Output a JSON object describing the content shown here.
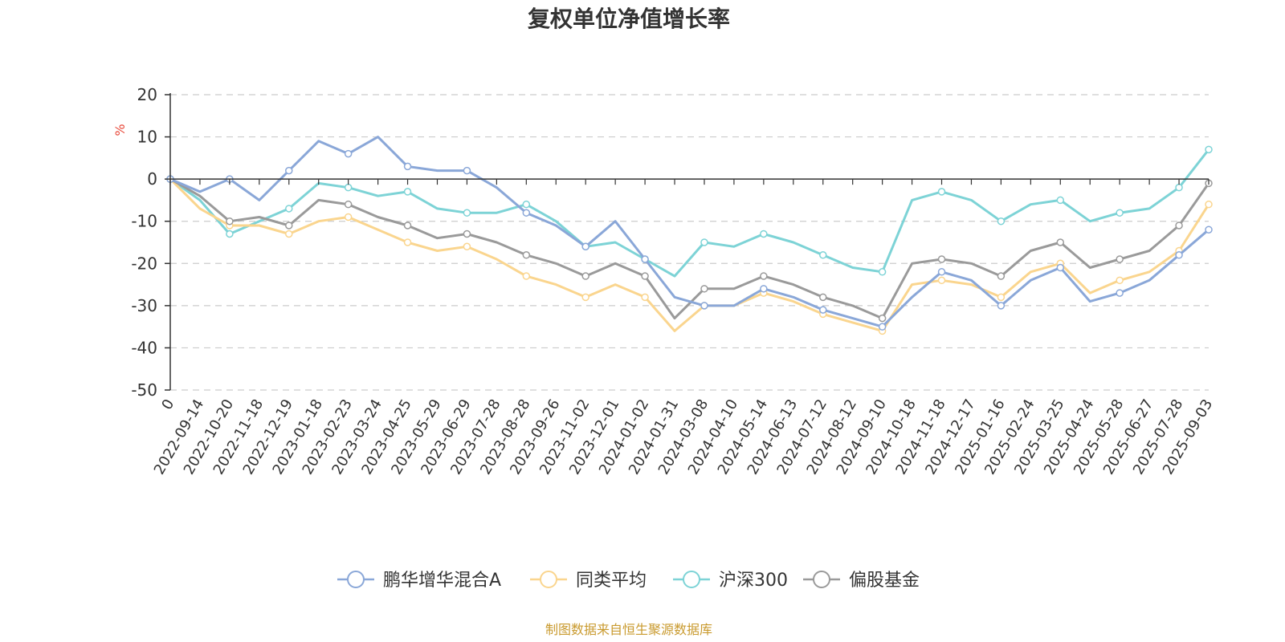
{
  "chart_data": {
    "type": "line",
    "title": "复权单位净值增长率",
    "ylabel": "%",
    "ylim": [
      -50,
      20
    ],
    "yticks": [
      20,
      10,
      0,
      -10,
      -20,
      -30,
      -40,
      -50
    ],
    "x_categories": [
      "0",
      "2022-09-14",
      "2022-10-20",
      "2022-11-18",
      "2022-12-19",
      "2023-01-18",
      "2023-02-23",
      "2023-03-24",
      "2023-04-25",
      "2023-05-29",
      "2023-06-29",
      "2023-07-28",
      "2023-08-28",
      "2023-09-26",
      "2023-11-02",
      "2023-12-01",
      "2024-01-02",
      "2024-01-31",
      "2024-03-08",
      "2024-04-10",
      "2024-05-14",
      "2024-06-13",
      "2024-07-12",
      "2024-08-12",
      "2024-09-10",
      "2024-10-18",
      "2024-11-18",
      "2024-12-17",
      "2025-01-16",
      "2025-02-24",
      "2025-03-25",
      "2025-04-24",
      "2025-05-28",
      "2025-06-27",
      "2025-07-28",
      "2025-09-03"
    ],
    "grid": "horizontal-dashed",
    "legend_position": "bottom",
    "series": [
      {
        "name": "鹏华增华混合A",
        "color": "#8aa7d8",
        "values": [
          0,
          -3,
          0,
          -5,
          2,
          9,
          6,
          10,
          3,
          2,
          2,
          -2,
          -8,
          -11,
          -16,
          -10,
          -19,
          -28,
          -30,
          -30,
          -26,
          -28,
          -31,
          -33,
          -35,
          -28,
          -22,
          -24,
          -30,
          -24,
          -21,
          -29,
          -27,
          -24,
          -18,
          -12
        ]
      },
      {
        "name": "同类平均",
        "color": "#fad58e",
        "values": [
          0,
          -7,
          -11,
          -11,
          -13,
          -10,
          -9,
          -12,
          -15,
          -17,
          -16,
          -19,
          -23,
          -25,
          -28,
          -25,
          -28,
          -36,
          -30,
          -30,
          -27,
          -29,
          -32,
          -34,
          -36,
          -25,
          -24,
          -25,
          -28,
          -22,
          -20,
          -27,
          -24,
          -22,
          -17,
          -6
        ]
      },
      {
        "name": "沪深300",
        "color": "#7dd3d6",
        "values": [
          0,
          -5,
          -13,
          -10,
          -7,
          -1,
          -2,
          -4,
          -3,
          -7,
          -8,
          -8,
          -6,
          -10,
          -16,
          -15,
          -19,
          -23,
          -15,
          -16,
          -13,
          -15,
          -18,
          -21,
          -22,
          -5,
          -3,
          -5,
          -10,
          -6,
          -5,
          -10,
          -8,
          -7,
          -2,
          7
        ]
      },
      {
        "name": "偏股基金",
        "color": "#9a9a9a",
        "values": [
          0,
          -4,
          -10,
          -9,
          -11,
          -5,
          -6,
          -9,
          -11,
          -14,
          -13,
          -15,
          -18,
          -20,
          -23,
          -20,
          -23,
          -33,
          -26,
          -26,
          -23,
          -25,
          -28,
          -30,
          -33,
          -20,
          -19,
          -20,
          -23,
          -17,
          -15,
          -21,
          -19,
          -17,
          -11,
          -1
        ]
      }
    ]
  },
  "source_note": "制图数据来自恒生聚源数据库",
  "colors": {
    "axis": "#333333",
    "grid": "#cccccc",
    "unit": "#e8493a",
    "source": "#c99a2e"
  }
}
